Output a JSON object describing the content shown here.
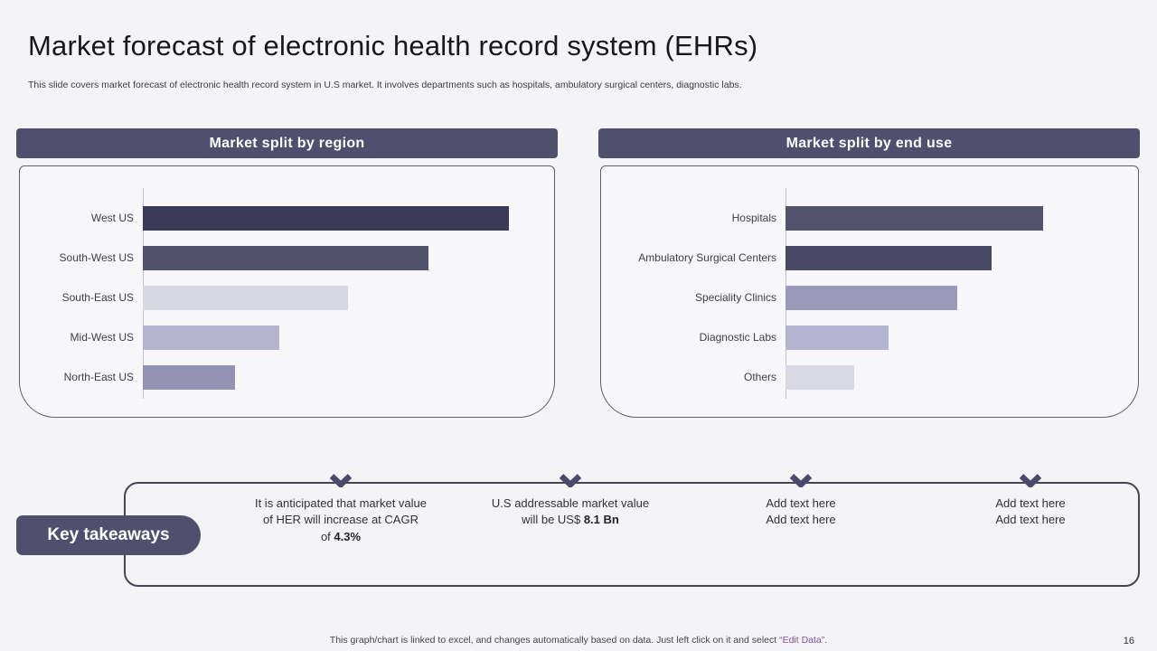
{
  "slide": {
    "title": "Market forecast of electronic health record system (EHRs)",
    "subtitle": "This slide covers market forecast of electronic health record system in U.S market. It involves departments such as hospitals, ambulatory surgical centers, diagnostic labs.",
    "key_takeaways_label": "Key takeaways",
    "footer": {
      "text": "This graph/chart is linked to excel, and changes automatically based on data. Just left click on it and select ",
      "highlight": "“Edit Data”",
      "suffix": "."
    },
    "page_number": "16"
  },
  "takeaways": [
    {
      "text": "It is anticipated that market value\nof HER will increase at CAGR\nof ",
      "highlight": "4.3%"
    },
    {
      "text": "U.S addressable market value\nwill be US$ ",
      "highlight": "8.1 Bn"
    },
    {
      "text": "Add text here\nAdd text here",
      "highlight": ""
    },
    {
      "text": "Add text here\nAdd text here",
      "highlight": ""
    }
  ],
  "chart_data": [
    {
      "type": "bar",
      "orientation": "horizontal",
      "title": "Market split by region",
      "categories": [
        "West US",
        "South-West US",
        "South-East US",
        "Mid-West US",
        "North-East US"
      ],
      "values": [
        91,
        71,
        51,
        34,
        23
      ],
      "xlim": [
        0,
        100
      ],
      "bar_colors": [
        "#3a3956",
        "#53526d",
        "#d8d8e2",
        "#b4b4cf",
        "#9392b2"
      ],
      "grid": false,
      "legend": false,
      "value_labels": false
    },
    {
      "type": "bar",
      "orientation": "horizontal",
      "title": "Market split by end use",
      "categories": [
        "Hospitals",
        "Ambulatory Surgical Centers",
        "Speciality Clinics",
        "Diagnostic Labs",
        "Others"
      ],
      "values": [
        75,
        60,
        50,
        30,
        20
      ],
      "xlim": [
        0,
        100
      ],
      "bar_colors": [
        "#54536e",
        "#494865",
        "#9a99ba",
        "#b4b3d0",
        "#d9d9e3"
      ],
      "grid": false,
      "legend": false,
      "value_labels": false
    }
  ],
  "colors": {
    "accent": "#504f6e",
    "background": "#f4f4f6",
    "footer_highlight": "#7a52a0"
  }
}
